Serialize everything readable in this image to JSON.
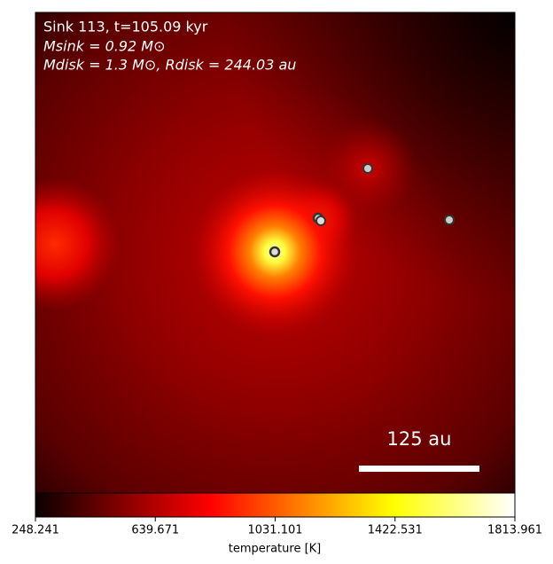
{
  "chart_data": {
    "type": "heatmap",
    "annotations": [
      "Sink 113, t=105.09 kyr",
      "Msink = 0.92 M⊙",
      "Mdisk = 1.3 M⊙, Rdisk = 244.03 au"
    ],
    "scale_bar_label": "125 au",
    "colorbar": {
      "label": "temperature [K]",
      "colormap": "hot",
      "lim": [
        248.241,
        1813.961
      ],
      "ticks": [
        248.241,
        639.671,
        1031.101,
        1422.531,
        1813.961
      ]
    }
  }
}
